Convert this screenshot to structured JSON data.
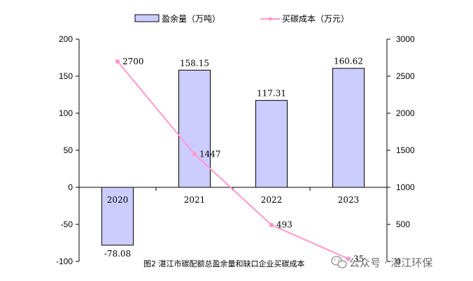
{
  "chart_data": {
    "type": "bar",
    "categories": [
      "2020",
      "2021",
      "2022",
      "2023"
    ],
    "series": [
      {
        "name": "盈余量（万吨）",
        "type": "bar",
        "axis": "left",
        "values": [
          -78.08,
          158.15,
          117.31,
          160.62
        ],
        "labels": [
          "-78.08",
          "158.15",
          "117.31",
          "160.62"
        ]
      },
      {
        "name": "买碳成本（万元）",
        "type": "line",
        "axis": "right",
        "values": [
          2700,
          1447,
          493,
          35
        ],
        "labels": [
          "2700",
          "1447",
          "493",
          "35"
        ]
      }
    ],
    "ylim_left": [
      -100,
      200
    ],
    "yticks_left": [
      "-100",
      "-50",
      "0",
      "50",
      "100",
      "150",
      "200"
    ],
    "ylim_right": [
      0,
      3000
    ],
    "yticks_right": [
      "0",
      "500",
      "1000",
      "1500",
      "2000",
      "2500",
      "3000"
    ],
    "caption": "图2  湛江市碳配额总盈余量和缺口企业买碳成本",
    "watermark": "公众号 · 湛江环保",
    "colors": {
      "bar_fill": "#ccccff",
      "bar_stroke": "#000000",
      "line": "#ff99cc",
      "marker": "#ff99cc"
    },
    "grid": false,
    "legend_position": "top"
  }
}
